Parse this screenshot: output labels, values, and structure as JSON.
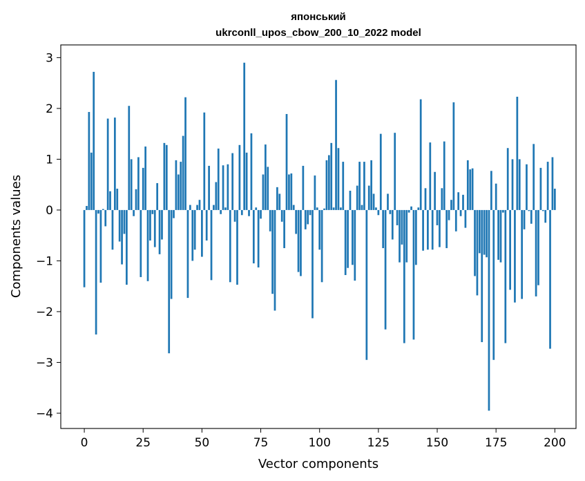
{
  "chart_data": {
    "type": "bar",
    "title_line1": "японський",
    "title_line2": "ukrconll_upos_cbow_200_10_2022 model",
    "xlabel": "Vector components",
    "ylabel": "Components values",
    "xlim": [
      -10,
      209
    ],
    "ylim": [
      -4.3,
      3.25
    ],
    "x_ticks": [
      0,
      25,
      50,
      75,
      100,
      125,
      150,
      175,
      200
    ],
    "y_ticks": [
      -4,
      -3,
      -2,
      -1,
      0,
      1,
      2,
      3
    ],
    "x_tick_labels": [
      "0",
      "25",
      "50",
      "75",
      "100",
      "125",
      "150",
      "175",
      "200"
    ],
    "y_tick_labels": [
      "−4",
      "−3",
      "−2",
      "−1",
      "0",
      "1",
      "2",
      "3"
    ],
    "bar_color": "#1f77b4",
    "grid": false,
    "values": [
      -1.52,
      0.08,
      1.93,
      1.13,
      2.72,
      -2.45,
      -0.07,
      -1.43,
      0.02,
      -0.32,
      1.8,
      0.37,
      -0.78,
      1.82,
      0.42,
      -0.62,
      -1.07,
      -0.47,
      -1.47,
      2.05,
      1.0,
      -0.12,
      0.41,
      1.04,
      -1.32,
      0.83,
      1.25,
      -1.4,
      -0.6,
      -0.08,
      -0.73,
      0.53,
      -0.87,
      -0.58,
      1.32,
      1.28,
      -2.82,
      -1.75,
      -0.16,
      0.98,
      0.7,
      0.95,
      1.46,
      2.22,
      -1.73,
      0.1,
      -1.0,
      -0.78,
      0.1,
      0.2,
      -0.92,
      1.92,
      -0.6,
      0.87,
      -1.38,
      0.1,
      0.55,
      1.21,
      -0.08,
      0.88,
      0.05,
      0.9,
      -1.42,
      1.12,
      -0.23,
      -1.47,
      1.28,
      -0.1,
      2.9,
      1.13,
      -0.12,
      1.51,
      -1.05,
      0.05,
      -1.13,
      -0.17,
      0.7,
      1.29,
      0.85,
      -0.42,
      -1.65,
      -1.98,
      0.45,
      0.32,
      -0.23,
      -0.75,
      1.89,
      0.7,
      0.72,
      0.1,
      -0.47,
      -1.22,
      -1.3,
      0.87,
      -0.38,
      -0.28,
      -0.1,
      -2.13,
      0.68,
      0.05,
      -0.78,
      -1.42,
      0.03,
      0.98,
      1.08,
      1.32,
      0.05,
      2.56,
      1.22,
      0.05,
      0.95,
      -1.28,
      -1.14,
      0.38,
      -1.08,
      -1.39,
      0.48,
      0.95,
      0.1,
      0.95,
      -2.95,
      0.48,
      0.98,
      0.32,
      0.05,
      -0.1,
      1.5,
      -0.75,
      -2.35,
      0.32,
      -0.08,
      -0.58,
      1.52,
      -0.3,
      -1.03,
      -0.68,
      -2.62,
      -1.03,
      -0.05,
      0.07,
      -2.55,
      -1.08,
      0.05,
      2.18,
      -0.8,
      0.43,
      -0.78,
      1.33,
      -0.78,
      0.75,
      -0.3,
      -0.73,
      0.43,
      1.35,
      -0.75,
      -0.2,
      0.2,
      2.12,
      -0.42,
      0.35,
      -0.12,
      0.3,
      -0.35,
      0.98,
      0.8,
      0.82,
      -1.3,
      -1.68,
      -0.85,
      -2.6,
      -0.88,
      -0.93,
      -3.95,
      0.77,
      -2.95,
      0.52,
      -0.98,
      -1.03,
      -0.05,
      -2.62,
      1.22,
      -1.57,
      1.0,
      -1.82,
      2.23,
      1.0,
      -1.75,
      -0.38,
      0.9,
      -0.02,
      -0.27,
      1.3,
      -1.7,
      -1.48,
      0.83,
      -0.02,
      -0.25,
      0.95,
      -2.73,
      1.04,
      0.42
    ]
  }
}
